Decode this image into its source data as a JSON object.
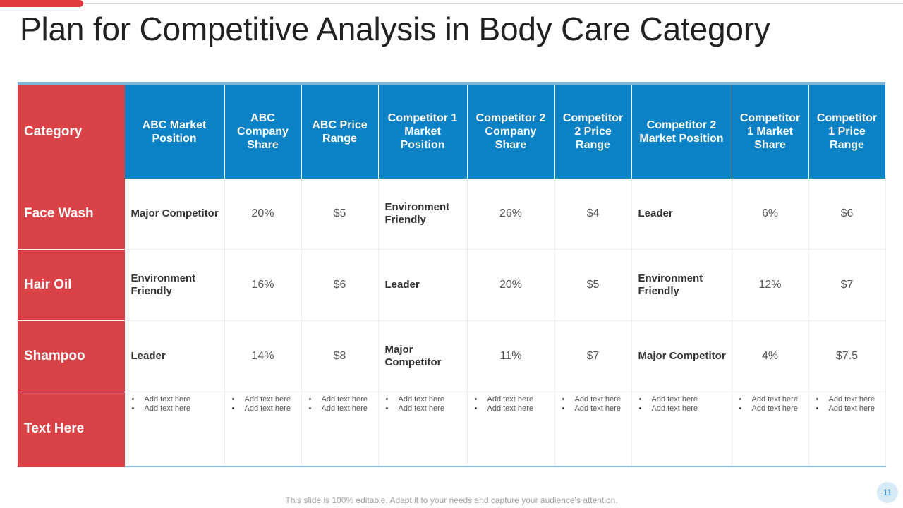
{
  "slide": {
    "title": "Plan for Competitive Analysis in Body Care Category",
    "footer": "This slide is 100% editable. Adapt it to your needs and capture your audience's attention.",
    "page_number": "11",
    "colors": {
      "accent_red": "#d94347",
      "header_blue": "#0b82c5",
      "page_badge": "#d6eaf6"
    }
  },
  "table": {
    "headers": [
      "Category",
      "ABC Market Position",
      "ABC Company Share",
      "ABC Price Range",
      "Competitor 1 Market Position",
      "Competitor 2 Company Share",
      "Competitor 2 Price Range",
      "Competitor 2 Market Position",
      "Competitor 1 Market Share",
      "Competitor 1 Price Range"
    ],
    "rows": [
      {
        "category": "Face Wash",
        "cells": [
          "Major Competitor",
          "20%",
          "$5",
          "Environment Friendly",
          "26%",
          "$4",
          "Leader",
          "6%",
          "$6"
        ]
      },
      {
        "category": "Hair Oil",
        "cells": [
          "Environment Friendly",
          "16%",
          "$6",
          "Leader",
          "20%",
          "$5",
          "Environment Friendly",
          "12%",
          "$7"
        ]
      },
      {
        "category": "Shampoo",
        "cells": [
          "Leader",
          "14%",
          "$8",
          "Major Competitor",
          "11%",
          "$7",
          "Major Competitor",
          "4%",
          "$7.5"
        ]
      }
    ],
    "text_row": {
      "category": "Text Here",
      "bullets": [
        "Add text here",
        "Add text here"
      ]
    }
  }
}
